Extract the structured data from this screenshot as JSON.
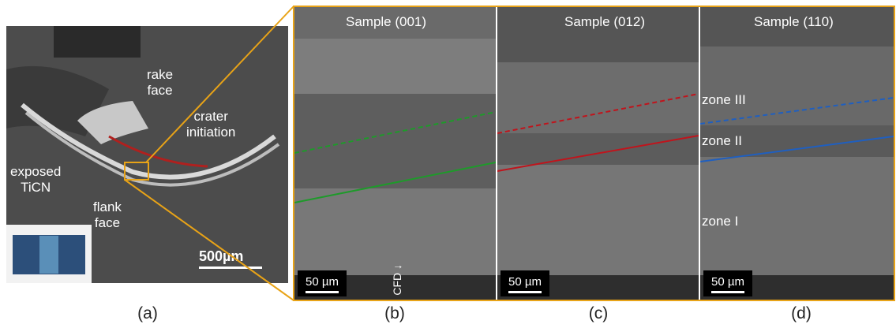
{
  "panels": {
    "a": {
      "caption": "(a)",
      "labels": {
        "rake": "rake\nface",
        "crater": "crater\ninitiation",
        "exposed": "exposed\nTiCN",
        "flank": "flank\nface"
      },
      "scale": "500µm"
    },
    "b": {
      "caption": "(b)",
      "title": "Sample (001)",
      "scale": "50 µm",
      "cfd": "CFD"
    },
    "c": {
      "caption": "(c)",
      "title": "Sample (012)",
      "scale": "50 µm"
    },
    "d": {
      "caption": "(d)",
      "title": "Sample (110)",
      "scale": "50 µm",
      "zones": {
        "z3": "zone III",
        "z2": "zone II",
        "z1": "zone I"
      }
    }
  },
  "colors": {
    "accent": "#e8a317",
    "green": "#1e9a2a",
    "red": "#c0141c",
    "blue": "#1f5fc0"
  }
}
